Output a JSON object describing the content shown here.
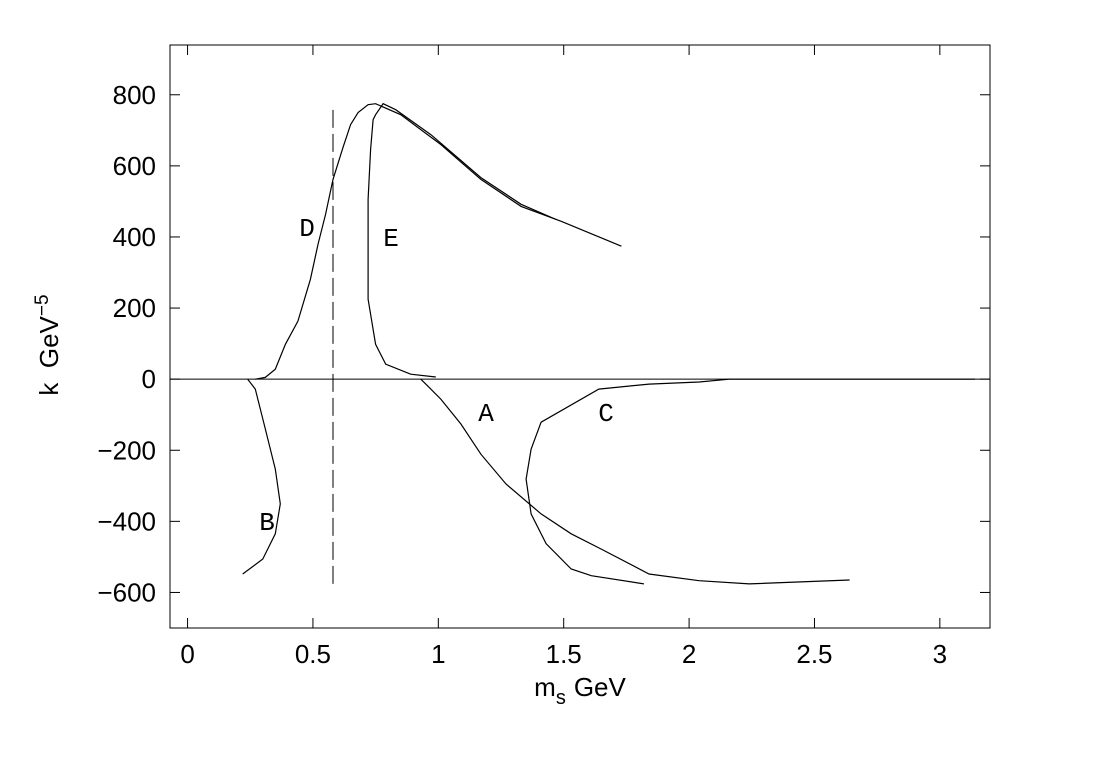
{
  "chart_data": {
    "type": "line",
    "xlabel": {
      "base": "m",
      "sub": "s",
      "unit": "GeV"
    },
    "ylabel": {
      "base": "k  GeV",
      "sup": "−5"
    },
    "xlim": [
      -0.07,
      3.2
    ],
    "ylim": [
      -700,
      940
    ],
    "xticks": [
      0,
      0.5,
      1,
      1.5,
      2,
      2.5,
      3
    ],
    "yticks": [
      {
        "value": -600,
        "label": "−600"
      },
      {
        "value": -400,
        "label": "−400"
      },
      {
        "value": -200,
        "label": "−200"
      },
      0,
      200,
      400,
      600,
      800
    ],
    "hline": 0,
    "vline": {
      "x": 0.58,
      "y": [
        -576,
        764
      ]
    },
    "series": [
      {
        "name": "A",
        "color": "#000000",
        "x": [
          0.93,
          0.95,
          1.01,
          1.09,
          1.17,
          1.27,
          1.41,
          1.53,
          1.65,
          1.84,
          2.04,
          2.24,
          2.64
        ],
        "y": [
          0,
          -14,
          -56,
          -126,
          -211,
          -295,
          -379,
          -435,
          -478,
          -548,
          -567,
          -576,
          -565
        ]
      },
      {
        "name": "B",
        "color": "#000000",
        "x": [
          0.24,
          0.27,
          0.31,
          0.35,
          0.37,
          0.35,
          0.3,
          0.22
        ],
        "y": [
          0,
          -28,
          -140,
          -253,
          -351,
          -435,
          -506,
          -548
        ]
      },
      {
        "name": "C",
        "color": "#000000",
        "x": [
          3.14,
          2.16,
          2.04,
          1.84,
          1.64,
          1.41,
          1.37,
          1.35,
          1.37,
          1.43,
          1.53,
          1.61,
          1.82
        ],
        "y": [
          0,
          0,
          -8,
          -14,
          -28,
          -121,
          -197,
          -281,
          -379,
          -463,
          -534,
          -553,
          -576
        ]
      },
      {
        "name": "D",
        "color": "#000000",
        "x": [
          0.27,
          0.31,
          0.35,
          0.39,
          0.44,
          0.49,
          0.52,
          0.55,
          0.58,
          0.62,
          0.65,
          0.68,
          0.72,
          0.75,
          0.85,
          1.01,
          1.17,
          1.33,
          1.49,
          1.73
        ],
        "y": [
          0,
          5,
          28,
          98,
          163,
          281,
          379,
          463,
          562,
          652,
          716,
          750,
          772,
          775,
          744,
          660,
          562,
          486,
          444,
          374
        ]
      },
      {
        "name": "E",
        "color": "#000000",
        "x": [
          0.99,
          0.89,
          0.79,
          0.75,
          0.72,
          0.72,
          0.72,
          0.73,
          0.74,
          0.75,
          0.78,
          0.83,
          0.97,
          1.17,
          1.33,
          1.47
        ],
        "y": [
          6,
          14,
          42,
          98,
          225,
          309,
          506,
          646,
          730,
          744,
          775,
          758,
          688,
          567,
          492,
          449
        ]
      }
    ]
  }
}
